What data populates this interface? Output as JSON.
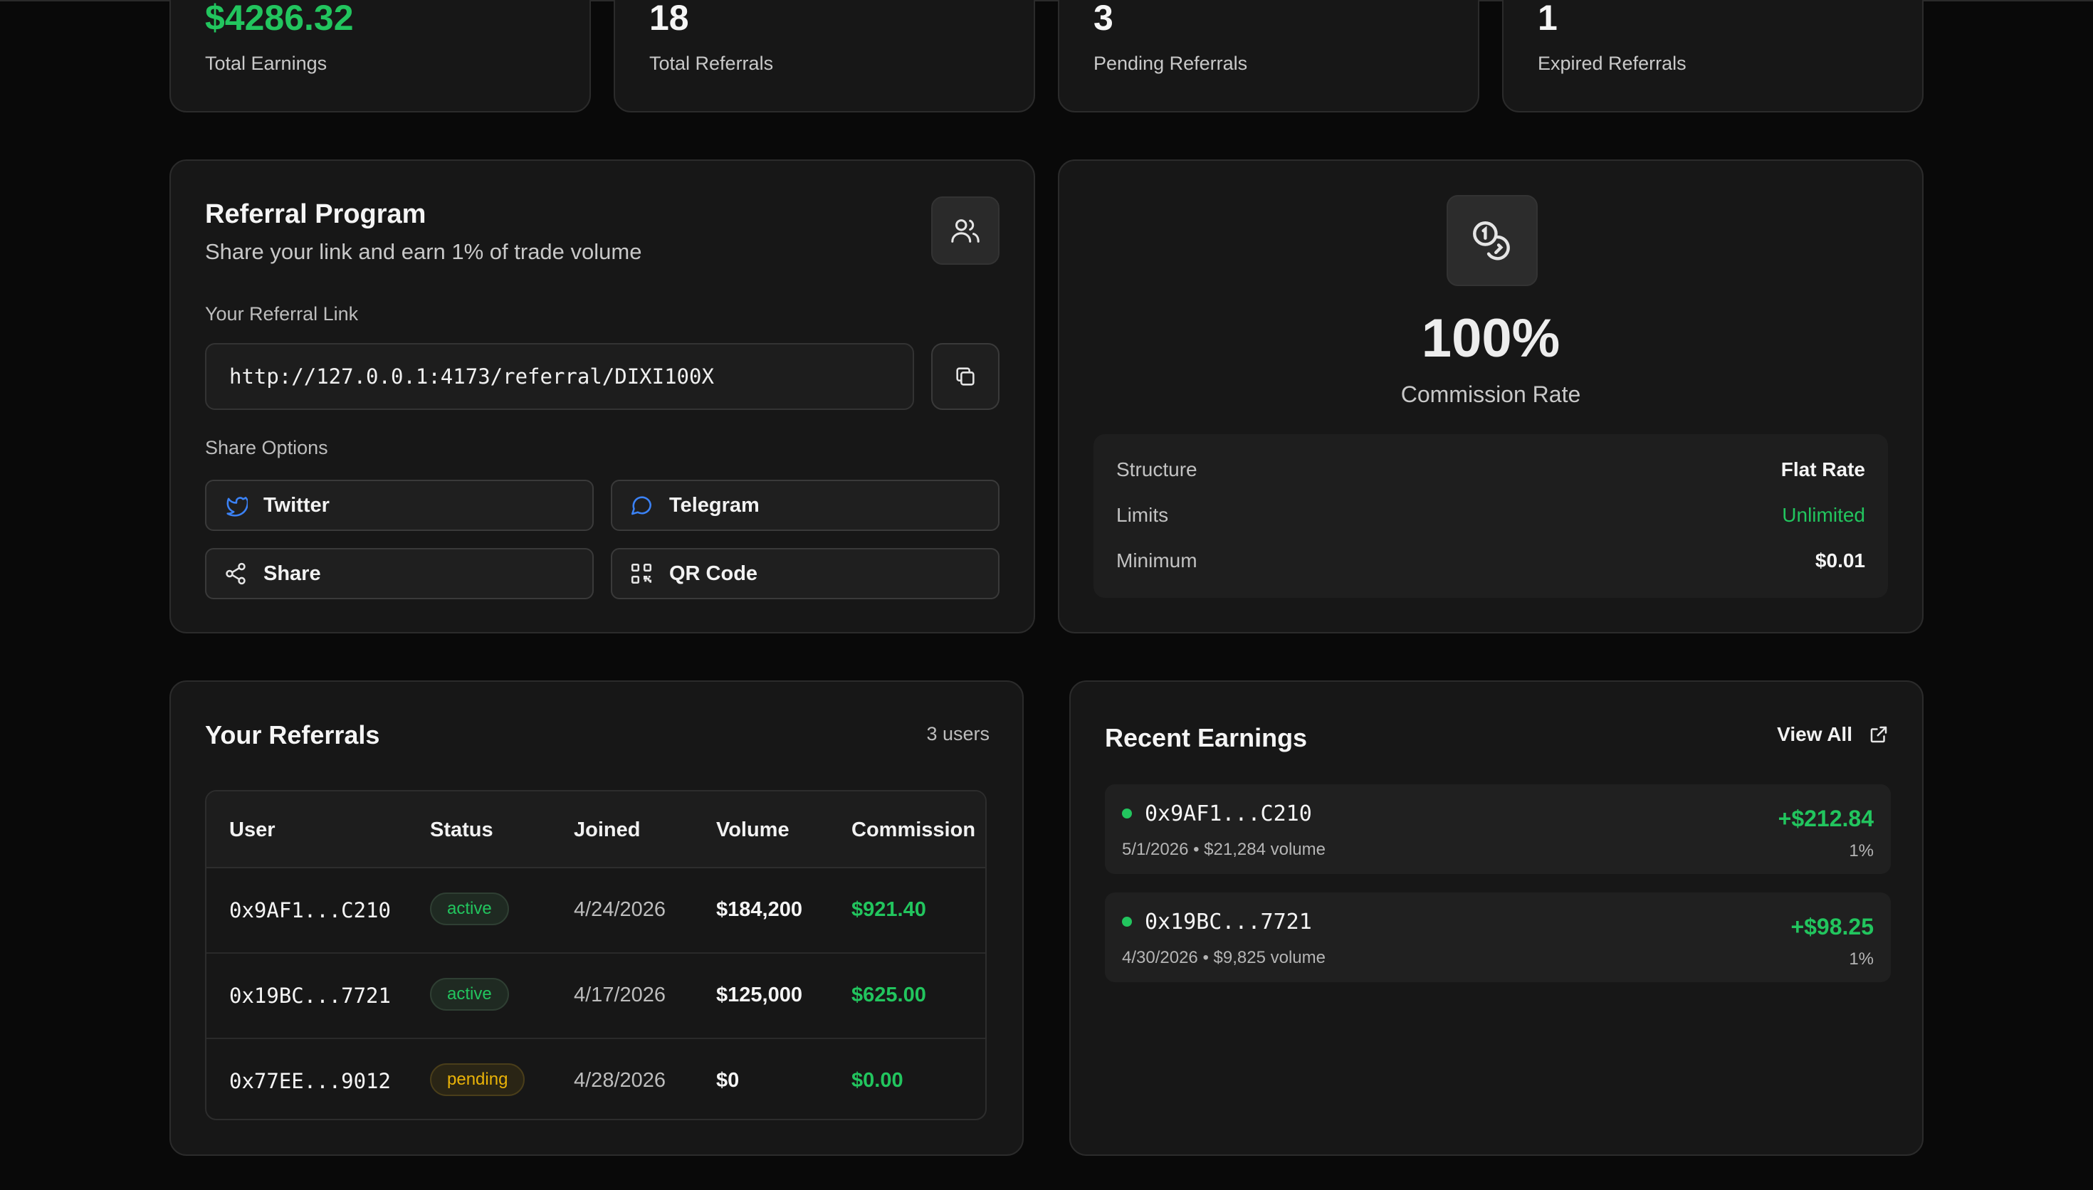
{
  "stats": [
    {
      "value": "$4286.32",
      "label": "Total Earnings"
    },
    {
      "value": "18",
      "label": "Total Referrals"
    },
    {
      "value": "3",
      "label": "Pending Referrals"
    },
    {
      "value": "1",
      "label": "Expired Referrals"
    }
  ],
  "program": {
    "title": "Referral Program",
    "subtitle": "Share your link and earn 1% of trade volume",
    "link_label": "Your Referral Link",
    "link_value": "http://127.0.0.1:4173/referral/DIXI100X",
    "share_label": "Share Options",
    "share_buttons": {
      "twitter": "Twitter",
      "telegram": "Telegram",
      "share": "Share",
      "qr": "QR Code"
    }
  },
  "commission": {
    "rate": "100%",
    "rate_label": "Commission Rate",
    "details": [
      {
        "key": "Structure",
        "value": "Flat Rate"
      },
      {
        "key": "Limits",
        "value": "Unlimited"
      },
      {
        "key": "Minimum",
        "value": "$0.01"
      }
    ]
  },
  "referrals": {
    "title": "Your Referrals",
    "count": "3 users",
    "columns": [
      "User",
      "Status",
      "Joined",
      "Volume",
      "Commission"
    ],
    "rows": [
      {
        "user": "0x9AF1...C210",
        "status": "active",
        "joined": "4/24/2026",
        "volume": "$184,200",
        "commission": "$921.40"
      },
      {
        "user": "0x19BC...7721",
        "status": "active",
        "joined": "4/17/2026",
        "volume": "$125,000",
        "commission": "$625.00"
      },
      {
        "user": "0x77EE...9012",
        "status": "pending",
        "joined": "4/28/2026",
        "volume": "$0",
        "commission": "$0.00"
      }
    ]
  },
  "earnings": {
    "title": "Recent Earnings",
    "view_all": "View All",
    "items": [
      {
        "addr": "0x9AF1...C210",
        "date": "5/1/2026",
        "volume": "$21,284 volume",
        "amount": "+$212.84",
        "pct": "1%"
      },
      {
        "addr": "0x19BC...7721",
        "date": "4/30/2026",
        "volume": "$9,825 volume",
        "amount": "+$98.25",
        "pct": "1%"
      }
    ]
  },
  "colors": {
    "accent_green": "#22c55e",
    "pending_yellow": "#eab308",
    "twitter_blue": "#3b82f6",
    "background": "#090909"
  }
}
